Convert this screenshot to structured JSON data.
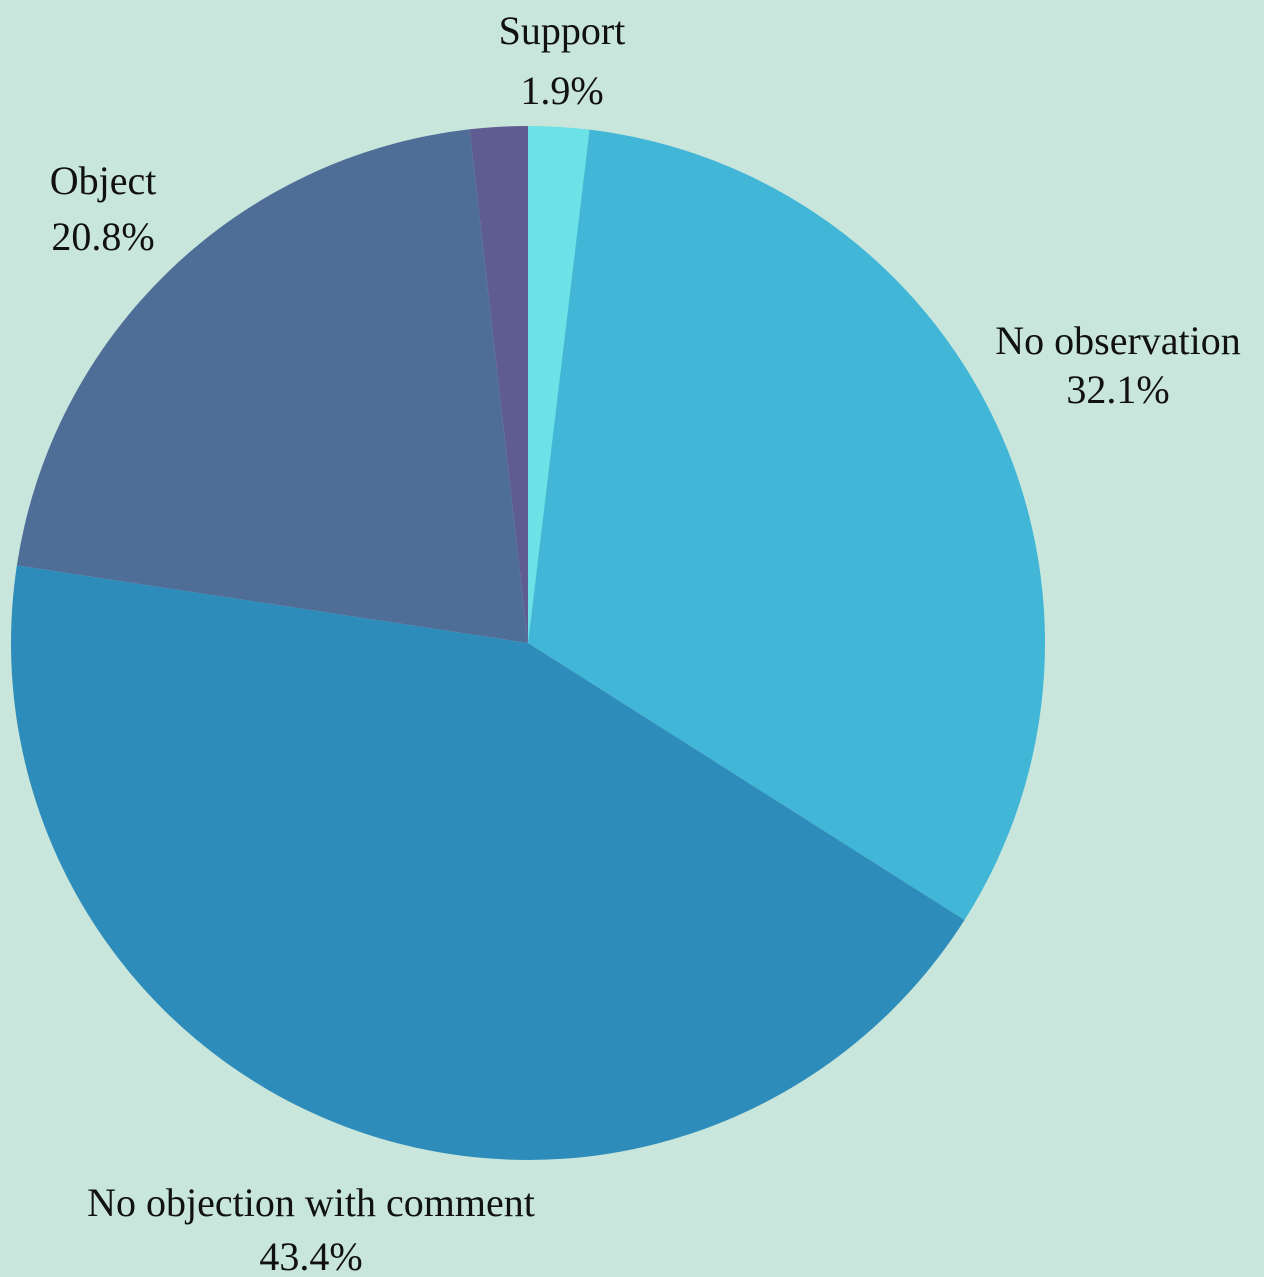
{
  "chart_data": {
    "type": "pie",
    "slices": [
      {
        "label": "Support",
        "value": 1.9,
        "value_label": "1.9%",
        "color": "#6ae2e6"
      },
      {
        "label": "No observation",
        "value": 32.1,
        "value_label": "32.1%",
        "color": "#42b6d6"
      },
      {
        "label": "No objection with comment",
        "value": 43.4,
        "value_label": "43.4%",
        "color": "#2e8cba"
      },
      {
        "label": "Object",
        "value": 20.8,
        "value_label": "20.8%",
        "color": "#4e6e98"
      },
      {
        "label": "",
        "value": 1.8,
        "value_label": "",
        "color": "#5e5c90"
      }
    ],
    "start_angle": "top",
    "direction": "clockwise",
    "background": "#c8e6dc"
  }
}
